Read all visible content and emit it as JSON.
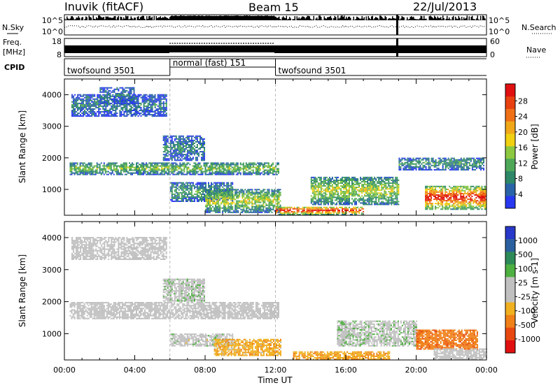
{
  "header": {
    "station": "Inuvik (fitACF)",
    "beam": "Beam 15",
    "date": "22/Jul/2013"
  },
  "strips": {
    "nsky_label": "N.Sky",
    "nsearch_label": "N.Search",
    "nsky_ticks": [
      "10^5",
      "10^0"
    ],
    "nsearch_ticks": [
      "10^5",
      "10^0"
    ],
    "freq_label": "Freq.",
    "freq_unit": "[MHz]",
    "freq_ticks": [
      "18",
      "8"
    ],
    "nave_label": "Nave",
    "nave_ticks": [
      "60",
      "0"
    ],
    "cpid_label": "CPID",
    "cpid_modes": [
      {
        "name": "twofsound 3501",
        "start": 0,
        "end": 6
      },
      {
        "name": "normal (fast) 151",
        "start": 6,
        "end": 12
      },
      {
        "name": "twofsound 3501",
        "start": 12,
        "end": 24
      }
    ]
  },
  "chart_data": [
    {
      "type": "heatmap",
      "name": "power",
      "xlabel": "Time UT",
      "ylabel": "Slant Range [km]",
      "xlim": [
        0,
        24
      ],
      "ylim": [
        180,
        4500
      ],
      "x_ticks": [
        "00:00",
        "04:00",
        "08:00",
        "12:00",
        "16:00",
        "20:00",
        "00:00"
      ],
      "y_ticks": [
        1000,
        2000,
        3000,
        4000
      ],
      "colorbar": {
        "label": "Power [dB]",
        "ticks": [
          "28",
          "24",
          "20",
          "16",
          "12",
          "8",
          "4"
        ],
        "colors": [
          "#2838f0",
          "#2a64a8",
          "#2e8868",
          "#4ea858",
          "#8cc840",
          "#f0d010",
          "#f0a818",
          "#f07018",
          "#e84010",
          "#e01010"
        ]
      },
      "echo_regions": [
        {
          "t0": 0.3,
          "t1": 12.2,
          "r0": 1450,
          "r1": 1850,
          "dB": 10
        },
        {
          "t0": 0.4,
          "t1": 5.8,
          "r0": 3300,
          "r1": 4000,
          "dB": 5
        },
        {
          "t0": 2.0,
          "t1": 4.0,
          "r0": 3700,
          "r1": 4200,
          "dB": 5
        },
        {
          "t0": 5.6,
          "t1": 8.0,
          "r0": 1900,
          "r1": 2700,
          "dB": 6
        },
        {
          "t0": 6.0,
          "t1": 9.6,
          "r0": 600,
          "r1": 1200,
          "dB": 8
        },
        {
          "t0": 8.0,
          "t1": 12.3,
          "r0": 250,
          "r1": 1000,
          "dB": 12
        },
        {
          "t0": 12.0,
          "t1": 17.0,
          "r0": 180,
          "r1": 450,
          "dB": 22
        },
        {
          "t0": 14.0,
          "t1": 19.0,
          "r0": 500,
          "r1": 1400,
          "dB": 12
        },
        {
          "t0": 19.0,
          "t1": 23.8,
          "r0": 1600,
          "r1": 2000,
          "dB": 7
        },
        {
          "t0": 20.5,
          "t1": 24.0,
          "r0": 350,
          "r1": 1100,
          "dB": 22
        }
      ]
    },
    {
      "type": "heatmap",
      "name": "velocity",
      "xlabel": "Time UT",
      "ylabel": "Slant Range [km]",
      "xlim": [
        0,
        24
      ],
      "ylim": [
        180,
        4500
      ],
      "x_ticks": [
        "00:00",
        "04:00",
        "08:00",
        "12:00",
        "16:00",
        "20:00",
        "00:00"
      ],
      "y_ticks": [
        1000,
        2000,
        3000,
        4000
      ],
      "colorbar": {
        "label": "Velocity [m s-1]",
        "ticks": [
          "1000",
          "500",
          "100",
          "25",
          "-25",
          "-100",
          "-500",
          "-1000"
        ],
        "colors": [
          "#2838c8",
          "#2a60a0",
          "#2e8a58",
          "#4eb040",
          "#c0c0c0",
          "#c0c0c0",
          "#f0b020",
          "#f08018",
          "#e84810",
          "#e01010"
        ]
      },
      "echo_regions": [
        {
          "t0": 0.3,
          "t1": 12.2,
          "r0": 1450,
          "r1": 1950,
          "v": 0
        },
        {
          "t0": 0.4,
          "t1": 5.8,
          "r0": 3300,
          "r1": 4000,
          "v": 0
        },
        {
          "t0": 5.6,
          "t1": 8.0,
          "r0": 2000,
          "r1": 2700,
          "v": 150
        },
        {
          "t0": 6.0,
          "t1": 9.6,
          "r0": 600,
          "r1": 1000,
          "v": 120
        },
        {
          "t0": 8.5,
          "t1": 12.3,
          "r0": 300,
          "r1": 800,
          "v": -150
        },
        {
          "t0": 13.0,
          "t1": 18.5,
          "r0": 180,
          "r1": 450,
          "v": -200
        },
        {
          "t0": 15.5,
          "t1": 20.0,
          "r0": 600,
          "r1": 1400,
          "v": 150
        },
        {
          "t0": 20.0,
          "t1": 23.5,
          "r0": 500,
          "r1": 1100,
          "v": -400
        },
        {
          "t0": 21.0,
          "t1": 24.0,
          "r0": 180,
          "r1": 500,
          "v": 0
        }
      ]
    }
  ]
}
